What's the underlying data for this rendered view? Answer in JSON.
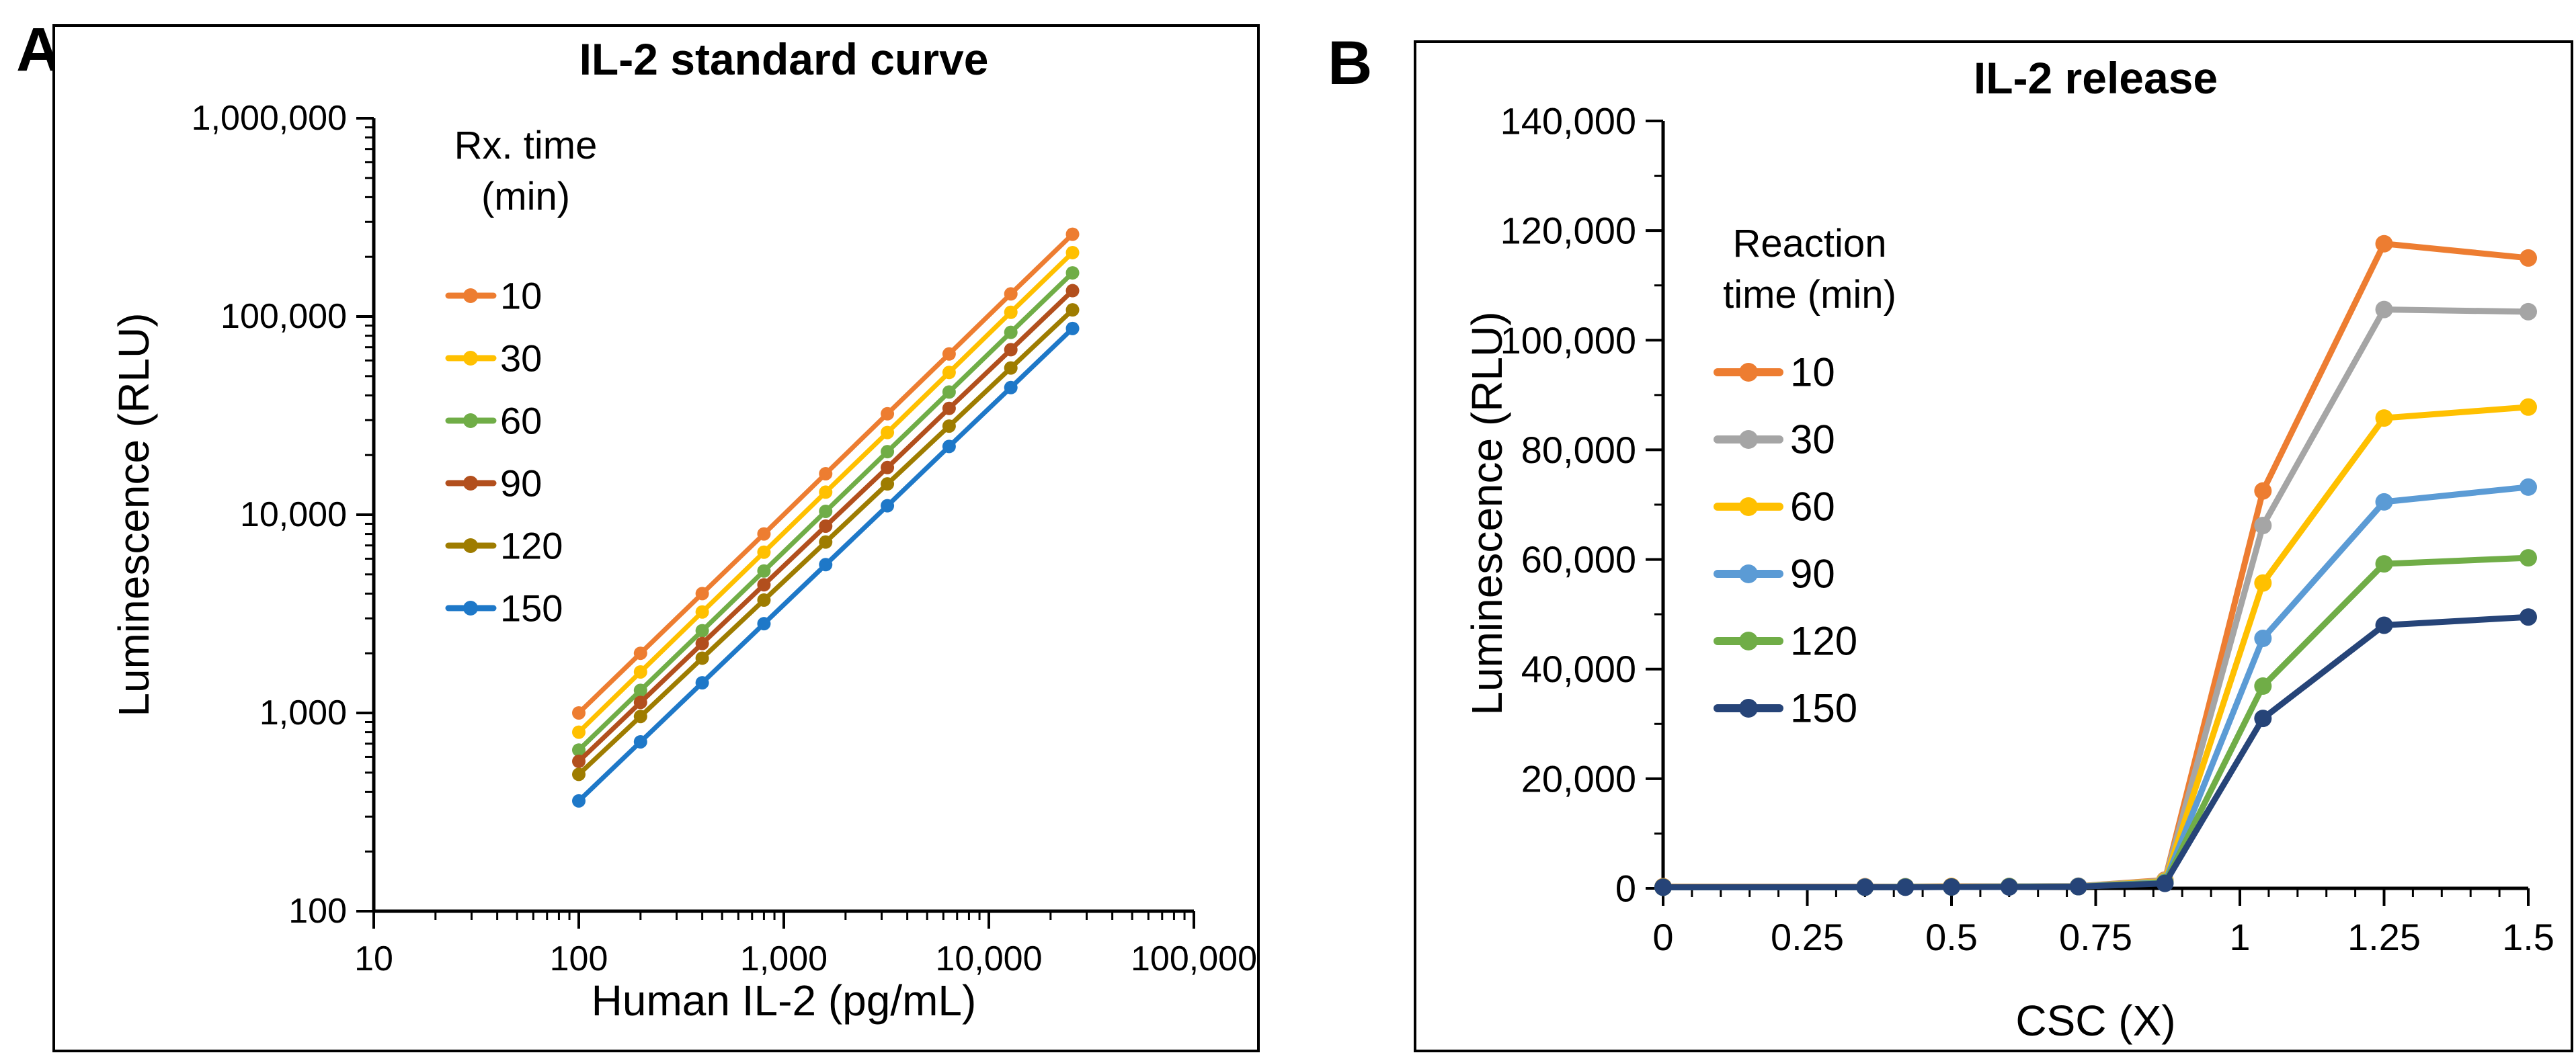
{
  "panels": [
    {
      "label": "A"
    },
    {
      "label": "B"
    }
  ],
  "chart_data": [
    {
      "type": "line",
      "title": "IL-2 standard curve",
      "xlabel": "Human IL-2 (pg/mL)",
      "ylabel": "Luminescence (RLU)",
      "x_scale": "log",
      "y_scale": "log",
      "xlim": [
        10,
        100000
      ],
      "ylim": [
        100,
        1000000
      ],
      "x_ticks": {
        "values": [
          10,
          100,
          1000,
          10000,
          100000
        ],
        "labels": [
          "10",
          "100",
          "1,000",
          "10,000",
          "100,000"
        ]
      },
      "y_ticks": {
        "values": [
          100,
          1000,
          10000,
          100000,
          1000000
        ],
        "labels": [
          "100",
          "1,000",
          "10,000",
          "100,000",
          "1,000,000"
        ]
      },
      "legend": {
        "title_lines": [
          "Rx. time",
          "(min)"
        ],
        "position": "inside-top-left"
      },
      "x": [
        100,
        200,
        400,
        800,
        1600,
        3200,
        6400,
        12800,
        25600
      ],
      "series": [
        {
          "name": "10",
          "color": "#ED7D31",
          "values": [
            1000,
            2000,
            4000,
            8000,
            16100,
            32300,
            64700,
            130000,
            260000
          ]
        },
        {
          "name": "30",
          "color": "#FFC000",
          "values": [
            800,
            1610,
            3230,
            6470,
            13000,
            26000,
            52200,
            105000,
            210000
          ]
        },
        {
          "name": "60",
          "color": "#70AD47",
          "values": [
            650,
            1300,
            2600,
            5200,
            10400,
            20800,
            41600,
            83200,
            166000
          ]
        },
        {
          "name": "90",
          "color": "#B24F1D",
          "values": [
            570,
            1130,
            2240,
            4430,
            8760,
            17300,
            34400,
            68000,
            135000
          ]
        },
        {
          "name": "120",
          "color": "#9E7C00",
          "values": [
            490,
            960,
            1890,
            3710,
            7280,
            14300,
            28000,
            55000,
            108000
          ]
        },
        {
          "name": "150",
          "color": "#1E78C8",
          "values": [
            360,
            715,
            1420,
            2820,
            5600,
            11100,
            22100,
            43800,
            87000
          ]
        }
      ]
    },
    {
      "type": "line",
      "title": "IL-2 release",
      "xlabel": "CSC (X)",
      "ylabel": "Luminescence (RLU)",
      "x_scale": "linear",
      "y_scale": "linear",
      "xlim": [
        0,
        1.5
      ],
      "ylim": [
        0,
        140000
      ],
      "x_minor": 0.05,
      "y_minor": 10000,
      "x_ticks": {
        "values": [
          0,
          0.25,
          0.5,
          0.75,
          1,
          1.25,
          1.5
        ],
        "labels": [
          "0",
          "0.25",
          "0.5",
          "0.75",
          "1",
          "1.25",
          "1.5"
        ]
      },
      "y_ticks": {
        "values": [
          0,
          20000,
          40000,
          60000,
          80000,
          100000,
          120000,
          140000
        ],
        "labels": [
          "0",
          "20,000",
          "40,000",
          "60,000",
          "80,000",
          "100,000",
          "120,000",
          "140,000"
        ]
      },
      "legend": {
        "title_lines": [
          "Reaction",
          "time (min)"
        ],
        "position": "inside-top-left"
      },
      "x": [
        0,
        0.35,
        0.42,
        0.5,
        0.6,
        0.72,
        0.87,
        1.04,
        1.25,
        1.5
      ],
      "series": [
        {
          "name": "10",
          "color": "#ED7D31",
          "values": [
            300,
            300,
            300,
            350,
            350,
            400,
            1500,
            72500,
            117600,
            115000
          ]
        },
        {
          "name": "30",
          "color": "#A5A5A5",
          "values": [
            250,
            250,
            300,
            300,
            350,
            400,
            1400,
            66200,
            105600,
            105200
          ]
        },
        {
          "name": "60",
          "color": "#FFC000",
          "values": [
            250,
            250,
            250,
            300,
            300,
            350,
            1300,
            55700,
            85800,
            87800
          ]
        },
        {
          "name": "90",
          "color": "#5B9BD5",
          "values": [
            200,
            250,
            250,
            250,
            300,
            350,
            1100,
            45600,
            70500,
            73200
          ]
        },
        {
          "name": "120",
          "color": "#70AD47",
          "values": [
            200,
            200,
            250,
            250,
            300,
            300,
            1000,
            36900,
            59200,
            60300
          ]
        },
        {
          "name": "150",
          "color": "#264478",
          "values": [
            200,
            200,
            200,
            250,
            250,
            300,
            900,
            31000,
            48000,
            49500
          ]
        }
      ]
    }
  ]
}
